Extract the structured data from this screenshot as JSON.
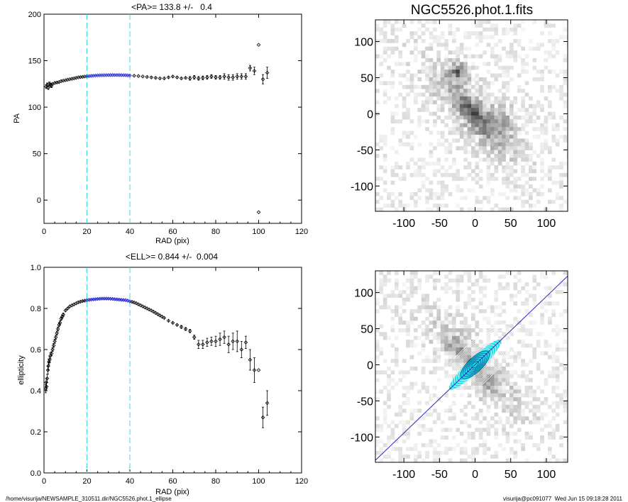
{
  "footer": {
    "left": "/home/visurija/NEWSAMPLE_310511.dir/NGC5526.phot.1_ellipse",
    "right": "visurija@pc091077  Wed Jun 15 09:18:28 2011"
  },
  "image_title": "NGC5526.phot.1.fits",
  "colors": {
    "points": "#000000",
    "highlight": "#1a1acc",
    "marker_lines": "#40d8e0",
    "ellipse_fill": "#22e0e8",
    "pa_line": "#2a2ab8"
  },
  "chart_data": [
    {
      "type": "scatter",
      "title": "<PA>= 133.8 +/-   0.4",
      "xlabel": "RAD (pix)",
      "ylabel": "PA",
      "xlim": [
        0,
        120
      ],
      "ylim": [
        -25,
        200
      ],
      "xticks": [
        0,
        20,
        40,
        60,
        80,
        100,
        120
      ],
      "yticks": [
        0,
        50,
        100,
        150,
        200
      ],
      "vlines": [
        20,
        40
      ],
      "highlight_range": [
        20,
        40
      ],
      "series": [
        {
          "x": [
            1,
            1.5,
            2,
            2.5,
            3,
            3.5,
            4,
            5,
            6,
            7,
            8,
            9,
            10,
            11,
            12,
            13,
            14,
            15,
            16,
            17,
            18,
            19,
            20,
            21,
            22,
            23,
            24,
            25,
            26,
            27,
            28,
            29,
            30,
            31,
            32,
            33,
            34,
            35,
            36,
            37,
            38,
            39,
            40,
            42,
            44,
            46,
            48,
            50,
            52,
            54,
            56,
            58,
            60,
            62,
            64,
            66,
            68,
            70,
            72,
            74,
            76,
            78,
            80,
            82,
            84,
            86,
            88,
            90,
            92,
            94,
            96,
            98,
            100,
            102,
            104
          ],
          "y": [
            122,
            124,
            121,
            125,
            124,
            123,
            125,
            126,
            126.5,
            127,
            128,
            128.5,
            129,
            129.5,
            130,
            130.5,
            131,
            131.5,
            132,
            132.3,
            132.6,
            133,
            133.2,
            133.4,
            133.6,
            133.8,
            134,
            134.1,
            134.2,
            134.3,
            134.4,
            134.4,
            134.5,
            134.5,
            134.5,
            134.5,
            134.5,
            134.5,
            134.4,
            134.4,
            134.3,
            134.2,
            134,
            133.8,
            133.5,
            133,
            132.5,
            132,
            131.5,
            131,
            131,
            132,
            133,
            132,
            131,
            131.5,
            131,
            132,
            131,
            131.5,
            132,
            133,
            132,
            132,
            133,
            132,
            132,
            133,
            133,
            133,
            142,
            139,
            167,
            130,
            137
          ],
          "err": [
            2,
            2,
            2,
            2,
            2,
            2,
            1,
            1,
            1,
            1,
            1,
            0.5,
            0.5,
            0.5,
            0.5,
            0.5,
            0.5,
            0.5,
            0.5,
            0.5,
            0.5,
            0.5,
            0.5,
            0.5,
            0.5,
            0.5,
            0.5,
            0.5,
            0.5,
            0.5,
            0.5,
            0.5,
            0.5,
            0.5,
            0.5,
            0.5,
            0.5,
            0.5,
            0.5,
            0.5,
            0.5,
            0.5,
            0.5,
            0.5,
            0.5,
            0.5,
            1,
            1,
            1,
            1,
            1,
            1,
            1,
            1,
            1,
            1,
            2,
            2,
            2,
            2,
            2,
            2,
            2,
            2,
            3,
            3,
            3,
            3,
            3,
            3,
            3,
            4,
            0,
            5,
            6
          ]
        },
        {
          "x": [
            100
          ],
          "y": [
            -13
          ],
          "err": [
            0
          ]
        }
      ]
    },
    {
      "type": "scatter",
      "title": "<ELL>= 0.844 +/-  0.004",
      "xlabel": "RAD (pix)",
      "ylabel": "ellipticity",
      "xlim": [
        0,
        120
      ],
      "ylim": [
        0,
        1
      ],
      "xticks": [
        0,
        20,
        40,
        60,
        80,
        100,
        120
      ],
      "yticks": [
        0.0,
        0.2,
        0.4,
        0.6,
        0.8,
        1.0
      ],
      "ytick_labels": [
        "0.0",
        "0.2",
        "0.4",
        "0.6",
        "0.8",
        "1.0"
      ],
      "vlines": [
        20,
        40
      ],
      "highlight_range": [
        20,
        40
      ],
      "series": [
        {
          "x": [
            0.8,
            1,
            1.2,
            1.5,
            1.8,
            2,
            2.3,
            2.6,
            3,
            3.5,
            4,
            4.5,
            5,
            5.5,
            6,
            6.5,
            7,
            7.5,
            8,
            8.5,
            9,
            10,
            11,
            12,
            13,
            14,
            15,
            16,
            17,
            18,
            19,
            20,
            21,
            22,
            23,
            24,
            25,
            26,
            27,
            28,
            29,
            30,
            31,
            32,
            33,
            34,
            35,
            36,
            37,
            38,
            39,
            40,
            41,
            42,
            43,
            44,
            45,
            46,
            47,
            48,
            49,
            50,
            51,
            52,
            53,
            54,
            55,
            56,
            58,
            60,
            62,
            64,
            66,
            68,
            70,
            72,
            74,
            76,
            78,
            80,
            82,
            84,
            86,
            88,
            90,
            92,
            94,
            96,
            98,
            100,
            102,
            104
          ],
          "y": [
            0.41,
            0.44,
            0.42,
            0.46,
            0.5,
            0.52,
            0.54,
            0.55,
            0.57,
            0.58,
            0.6,
            0.62,
            0.64,
            0.66,
            0.68,
            0.7,
            0.72,
            0.73,
            0.75,
            0.76,
            0.77,
            0.79,
            0.8,
            0.81,
            0.815,
            0.82,
            0.825,
            0.83,
            0.833,
            0.836,
            0.838,
            0.84,
            0.842,
            0.843,
            0.844,
            0.845,
            0.846,
            0.847,
            0.848,
            0.848,
            0.848,
            0.848,
            0.847,
            0.846,
            0.845,
            0.844,
            0.843,
            0.842,
            0.841,
            0.84,
            0.838,
            0.835,
            0.832,
            0.829,
            0.825,
            0.82,
            0.815,
            0.81,
            0.805,
            0.8,
            0.795,
            0.79,
            0.784,
            0.778,
            0.772,
            0.766,
            0.76,
            0.754,
            0.74,
            0.73,
            0.72,
            0.71,
            0.7,
            0.69,
            0.66,
            0.625,
            0.625,
            0.635,
            0.64,
            0.64,
            0.65,
            0.66,
            0.625,
            0.64,
            0.64,
            0.6,
            0.635,
            0.55,
            0.5,
            0.5,
            0.27,
            0.34
          ],
          "err": [
            0.02,
            0.02,
            0.02,
            0.02,
            0.02,
            0.02,
            0.015,
            0.015,
            0.015,
            0.01,
            0.01,
            0.01,
            0.01,
            0.01,
            0.01,
            0.01,
            0.01,
            0.01,
            0.008,
            0.008,
            0.008,
            0.006,
            0.006,
            0.005,
            0.005,
            0.004,
            0.004,
            0.004,
            0.004,
            0.004,
            0.004,
            0.004,
            0.004,
            0.004,
            0.004,
            0.004,
            0.004,
            0.004,
            0.004,
            0.004,
            0.004,
            0.004,
            0.004,
            0.004,
            0.004,
            0.004,
            0.004,
            0.004,
            0.004,
            0.004,
            0.004,
            0.004,
            0.004,
            0.004,
            0.004,
            0.004,
            0.004,
            0.004,
            0.004,
            0.004,
            0.004,
            0.004,
            0.005,
            0.005,
            0.005,
            0.005,
            0.005,
            0.005,
            0.006,
            0.006,
            0.006,
            0.007,
            0.007,
            0.008,
            0.01,
            0.02,
            0.02,
            0.02,
            0.02,
            0.025,
            0.03,
            0.03,
            0.04,
            0.04,
            0.05,
            0.04,
            0.03,
            0.05,
            0.06,
            0.0,
            0.05,
            0.06
          ]
        }
      ]
    },
    {
      "type": "heatmap",
      "title": "NGC5526.phot.1.fits",
      "xlim": [
        -140,
        130
      ],
      "ylim": [
        -135,
        130
      ],
      "xticks": [
        -100,
        -50,
        0,
        50,
        100
      ],
      "yticks": [
        -100,
        -50,
        0,
        50,
        100
      ],
      "xtick_labels": [
        "-100",
        "-50",
        "0",
        "50",
        "100"
      ],
      "ytick_labels": [
        "-100",
        "-50",
        "0",
        "50",
        "100"
      ]
    },
    {
      "type": "heatmap",
      "title": "",
      "xlim": [
        -140,
        130
      ],
      "ylim": [
        -135,
        130
      ],
      "xticks": [
        -100,
        -50,
        0,
        50,
        100
      ],
      "yticks": [
        -100,
        -50,
        0,
        50,
        100
      ],
      "xtick_labels": [
        "-100",
        "-50",
        "0",
        "50",
        "100"
      ],
      "ytick_labels": [
        "-100",
        "-50",
        "0",
        "50",
        "100"
      ],
      "position_angle_deg": 133.8,
      "ellipticity": 0.844
    }
  ]
}
